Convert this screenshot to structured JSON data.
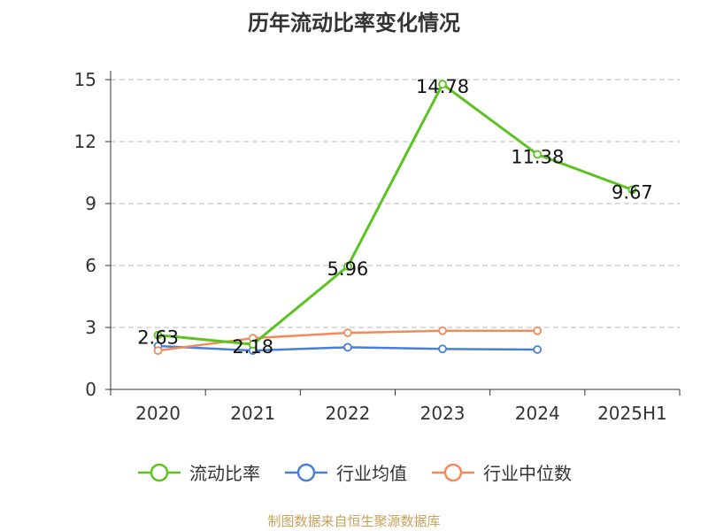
{
  "title": "历年流动比率变化情况",
  "source_note": "制图数据来自恒生聚源数据库",
  "colors": {
    "流动比率": "#5bc31f",
    "行业均值": "#4a7fd8",
    "行业中位数": "#f28b5a",
    "grid": "#bbbbbb",
    "axis": "#333333"
  },
  "chart_data": {
    "type": "line",
    "title": "历年流动比率变化情况",
    "categories": [
      "2020",
      "2021",
      "2022",
      "2023",
      "2024",
      "2025H1"
    ],
    "ylim": [
      0,
      15
    ],
    "yticks": [
      0,
      3,
      6,
      9,
      12,
      15
    ],
    "grid": true,
    "legend": "bottom",
    "series": [
      {
        "name": "流动比率",
        "values": [
          2.63,
          2.18,
          5.96,
          14.78,
          11.38,
          9.67
        ],
        "labels": [
          "2.63",
          "2.18",
          "5.96",
          "14.78",
          "11.38",
          "9.67"
        ]
      },
      {
        "name": "行业均值",
        "values": [
          2.1,
          1.88,
          2.04,
          1.96,
          1.93,
          null
        ]
      },
      {
        "name": "行业中位数",
        "values": [
          1.88,
          2.48,
          2.74,
          2.84,
          2.84,
          null
        ]
      }
    ]
  }
}
